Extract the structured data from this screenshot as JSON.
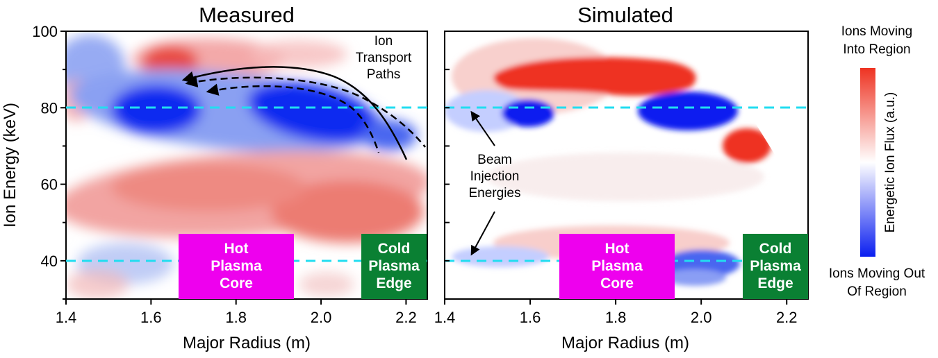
{
  "colors": {
    "positive": "#ee3322",
    "negative": "#0a1ef0",
    "reference_line": "#22ddf0",
    "hot_core_box": "#ee00ee",
    "cold_edge_box": "#0a8033"
  },
  "chart_data": [
    {
      "type": "heatmap",
      "title": "Measured",
      "xlabel": "Major Radius (m)",
      "ylabel": "Ion Energy (keV)",
      "xlim": [
        1.4,
        2.25
      ],
      "ylim": [
        30,
        100
      ],
      "x_ticks": [
        "1.4",
        "1.6",
        "1.8",
        "2.0",
        "2.2"
      ],
      "y_ticks": [
        "40",
        "60",
        "80",
        "100"
      ],
      "reference_lines_keV": [
        80,
        40
      ],
      "annotations": {
        "transport_paths": "Ion\nTransport\nPaths",
        "hot_core": "Hot\nPlasma\nCore",
        "cold_edge": "Cold\nPlasma\nEdge"
      }
    },
    {
      "type": "heatmap",
      "title": "Simulated",
      "xlabel": "Major Radius (m)",
      "xlim": [
        1.4,
        2.25
      ],
      "ylim": [
        30,
        100
      ],
      "x_ticks": [
        "1.4",
        "1.6",
        "1.8",
        "2.0",
        "2.2"
      ],
      "reference_lines_keV": [
        80,
        40
      ],
      "annotations": {
        "beam_injection": "Beam\nInjection\nEnergies",
        "hot_core": "Hot\nPlasma\nCore",
        "cold_edge": "Cold\nPlasma\nEdge"
      }
    }
  ],
  "colorbar": {
    "label": "Energetic Ion Flux (a.u.)",
    "top_label": "Ions Moving\nInto Region",
    "bottom_label": "Ions Moving Out\nOf Region"
  }
}
